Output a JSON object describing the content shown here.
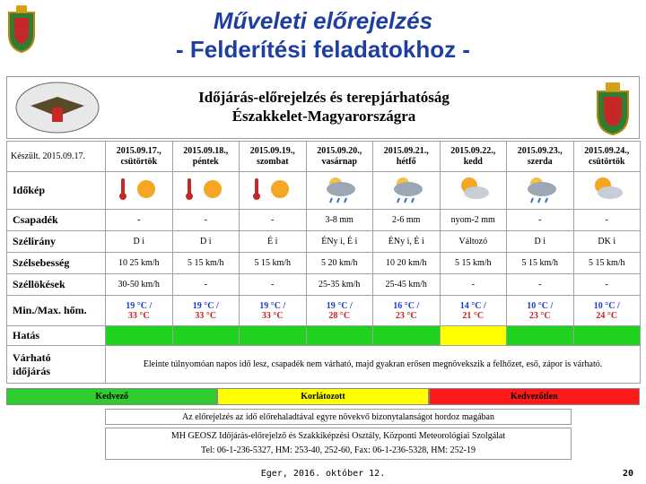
{
  "slide_title": [
    "Műveleti előrejelzés",
    "- Felderítési feladatokhoz -"
  ],
  "forecast": {
    "heading": [
      "Időjárás-előrejelzés és terepjárhatóság",
      "Északkelet-Magyarországra"
    ],
    "issued": "Készült. 2015.09.17.",
    "columns": [
      {
        "date": "2015.09.17.,",
        "day": "csütörtök"
      },
      {
        "date": "2015.09.18.,",
        "day": "péntek"
      },
      {
        "date": "2015.09.19.,",
        "day": "szombat"
      },
      {
        "date": "2015.09.20.,",
        "day": "vasárnap"
      },
      {
        "date": "2015.09.21.,",
        "day": "hétfő"
      },
      {
        "date": "2015.09.22.,",
        "day": "kedd"
      },
      {
        "date": "2015.09.23.,",
        "day": "szerda"
      },
      {
        "date": "2015.09.24.,",
        "day": "csütörtök"
      }
    ],
    "sky_label": "Időkép",
    "rows": [
      {
        "label": "Csapadék",
        "cells": [
          "-",
          "-",
          "-",
          "3-8 mm",
          "2-6 mm",
          "nyom-2 mm",
          "-",
          "-"
        ]
      },
      {
        "label": "Szélirány",
        "cells": [
          "D i",
          "D i",
          "É i",
          "ÉNy i, É i",
          "ÉNy i, É i",
          "Változó",
          "D i",
          "DK i"
        ]
      },
      {
        "label": "Szélsebesség",
        "cells": [
          "10 25 km/h",
          "5 15 km/h",
          "5 15 km/h",
          "5 20 km/h",
          "10 20 km/h",
          "5 15 km/h",
          "5 15 km/h",
          "5 15 km/h"
        ]
      },
      {
        "label": "Széllökések",
        "cells": [
          "30-50 km/h",
          "-",
          "-",
          "25-35 km/h",
          "25-45 km/h",
          "-",
          "-",
          "-"
        ]
      }
    ],
    "temperature": {
      "label": "Min./Max. hőm.",
      "min": [
        "19 °C /",
        "19 °C /",
        "19 °C /",
        "19 °C /",
        "16 °C /",
        "14 °C /",
        "10 °C /",
        "10 °C /"
      ],
      "max": [
        "33 °C",
        "33 °C",
        "33 °C",
        "28 °C",
        "23 °C",
        "21 °C",
        "23 °C",
        "24 °C"
      ]
    },
    "impact": {
      "label": "Hatás",
      "colors": [
        "#1ed21e",
        "#1ed21e",
        "#1ed21e",
        "#1ed21e",
        "#1ed21e",
        "#ffff00",
        "#1ed21e",
        "#1ed21e"
      ]
    },
    "outlook": {
      "label": [
        "Várható",
        "időjárás"
      ],
      "text": "Eleinte túlnyomóan napos idő lesz, csapadék nem várható, majd gyakran erősen megnövekszik a felhőzet, eső, zápor is várható."
    }
  },
  "legend": [
    {
      "label": "Kedvező",
      "color": "#2ecc2e"
    },
    {
      "label": "Korlátozott",
      "color": "#ffff00"
    },
    {
      "label": "Kedvezőtlen",
      "color": "#ff1a1a"
    }
  ],
  "note": "Az előrejelzés az idő előrehaladtával egyre növekvő bizonytalanságot hordoz magában",
  "contact": [
    "MH GEOSZ Időjárás-előrejelző és Szakkiképzési Osztály, Központi Meteorológiai Szolgálat",
    "Tel: 06-1-236-5327, HM: 253-40, 252-60, Fax: 06-1-236-5328, HM: 252-19"
  ],
  "footer": {
    "place_date": "Eger, 2016. október 12.",
    "page": "20"
  }
}
